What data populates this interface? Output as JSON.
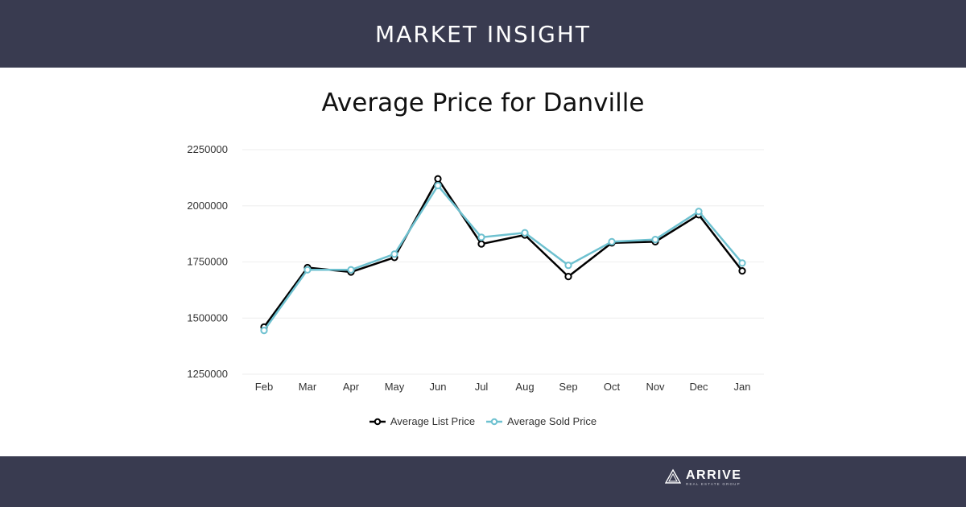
{
  "header": {
    "title": "MARKET INSIGHT"
  },
  "footer": {
    "logo_name": "ARRIVE",
    "logo_sub": "REAL ESTATE GROUP",
    "logo_icon": "triangle-logo-icon"
  },
  "colors": {
    "banner_bg": "#393b50",
    "list_series": "#000000",
    "sold_series": "#6ec1d0"
  },
  "chart_data": {
    "type": "line",
    "title": "Average Price for Danville",
    "xlabel": "",
    "ylabel": "",
    "categories": [
      "Feb",
      "Mar",
      "Apr",
      "May",
      "Jun",
      "Jul",
      "Aug",
      "Sep",
      "Oct",
      "Nov",
      "Dec",
      "Jan"
    ],
    "ylim": [
      1250000,
      2250000
    ],
    "yticks": [
      "2250000",
      "2000000",
      "1750000",
      "1500000",
      "1250000"
    ],
    "grid": true,
    "legend_position": "bottom",
    "series": [
      {
        "name": "Average List Price",
        "values": [
          1460000,
          1725000,
          1705000,
          1770000,
          2120000,
          1830000,
          1870000,
          1685000,
          1835000,
          1840000,
          1960000,
          1710000
        ]
      },
      {
        "name": "Average Sold Price",
        "values": [
          1445000,
          1715000,
          1715000,
          1785000,
          2090000,
          1860000,
          1880000,
          1735000,
          1840000,
          1850000,
          1975000,
          1745000
        ]
      }
    ]
  }
}
